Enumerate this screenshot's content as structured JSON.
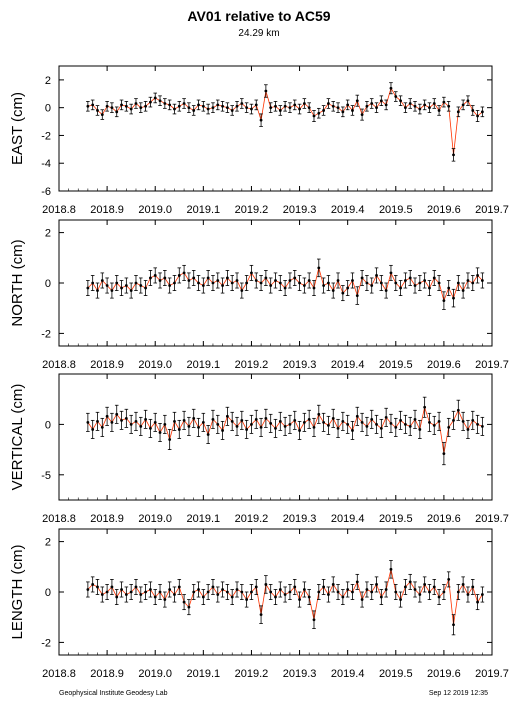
{
  "title": "AV01 relative to AC59",
  "subtitle": "24.29 km",
  "footer": {
    "left": "Geophysical Institute Geodesy Lab",
    "right": "Sep 12 2019 12:35"
  },
  "colors": {
    "points": "#000000",
    "error_bars": "#ff3300",
    "frame": "#000000"
  },
  "chart_data": [
    {
      "type": "scatter",
      "ylabel": "EAST (cm)",
      "xlim": [
        2018.8,
        2019.7
      ],
      "ylim": [
        -6,
        3
      ],
      "xticks": [
        "2018.8",
        "2018.9",
        "2019.0",
        "2019.1",
        "2019.2",
        "2019.3",
        "2019.4",
        "2019.5",
        "2019.6",
        "2019.7"
      ],
      "yticks": [
        "2",
        "0",
        "-2",
        "-4",
        "-6"
      ],
      "x": [
        2018.86,
        2018.87,
        2018.88,
        2018.89,
        2018.9,
        2018.91,
        2018.92,
        2018.93,
        2018.94,
        2018.95,
        2018.96,
        2018.97,
        2018.98,
        2018.99,
        2019.0,
        2019.01,
        2019.02,
        2019.03,
        2019.04,
        2019.05,
        2019.06,
        2019.07,
        2019.08,
        2019.09,
        2019.1,
        2019.11,
        2019.12,
        2019.13,
        2019.14,
        2019.15,
        2019.16,
        2019.17,
        2019.18,
        2019.19,
        2019.2,
        2019.21,
        2019.22,
        2019.23,
        2019.24,
        2019.25,
        2019.26,
        2019.27,
        2019.28,
        2019.29,
        2019.3,
        2019.31,
        2019.32,
        2019.33,
        2019.34,
        2019.35,
        2019.36,
        2019.37,
        2019.38,
        2019.39,
        2019.4,
        2019.41,
        2019.42,
        2019.43,
        2019.44,
        2019.45,
        2019.46,
        2019.47,
        2019.48,
        2019.49,
        2019.5,
        2019.51,
        2019.52,
        2019.53,
        2019.54,
        2019.55,
        2019.56,
        2019.57,
        2019.58,
        2019.59,
        2019.6,
        2019.61,
        2019.62,
        2019.63,
        2019.64,
        2019.65,
        2019.66,
        2019.67,
        2019.68
      ],
      "y": [
        0.1,
        0.2,
        -0.2,
        -0.5,
        0.1,
        0.0,
        -0.3,
        0.2,
        0.1,
        -0.1,
        0.3,
        0.0,
        0.1,
        0.4,
        0.7,
        0.5,
        0.3,
        0.2,
        -0.1,
        0.1,
        0.3,
        0.0,
        -0.2,
        0.2,
        0.1,
        -0.1,
        0.0,
        0.2,
        0.1,
        0.0,
        -0.2,
        0.1,
        0.3,
        0.0,
        -0.1,
        0.2,
        -0.9,
        1.2,
        0.0,
        0.1,
        -0.2,
        0.1,
        0.0,
        0.2,
        -0.1,
        0.3,
        0.0,
        -0.6,
        -0.4,
        -0.2,
        0.3,
        0.1,
        0.0,
        -0.3,
        0.2,
        -0.2,
        0.5,
        -0.5,
        0.1,
        0.3,
        0.0,
        0.5,
        0.2,
        1.4,
        0.8,
        0.5,
        0.0,
        0.3,
        0.1,
        -0.1,
        0.2,
        0.0,
        0.3,
        -0.2,
        0.4,
        0.1,
        -3.4,
        -0.3,
        0.2,
        0.5,
        -0.2,
        -0.6,
        -0.3
      ],
      "err": [
        0.35,
        0.35,
        0.35,
        0.35,
        0.35,
        0.35,
        0.35,
        0.35,
        0.35,
        0.35,
        0.35,
        0.35,
        0.35,
        0.35,
        0.35,
        0.35,
        0.35,
        0.35,
        0.35,
        0.35,
        0.35,
        0.35,
        0.35,
        0.35,
        0.35,
        0.35,
        0.35,
        0.35,
        0.35,
        0.35,
        0.35,
        0.35,
        0.35,
        0.35,
        0.35,
        0.35,
        0.45,
        0.45,
        0.35,
        0.35,
        0.35,
        0.35,
        0.35,
        0.35,
        0.35,
        0.35,
        0.35,
        0.4,
        0.35,
        0.35,
        0.35,
        0.35,
        0.35,
        0.35,
        0.35,
        0.35,
        0.4,
        0.4,
        0.35,
        0.35,
        0.35,
        0.35,
        0.35,
        0.4,
        0.35,
        0.35,
        0.35,
        0.35,
        0.35,
        0.35,
        0.35,
        0.35,
        0.35,
        0.35,
        0.35,
        0.35,
        0.45,
        0.35,
        0.35,
        0.35,
        0.35,
        0.4,
        0.35
      ]
    },
    {
      "type": "scatter",
      "ylabel": "NORTH (cm)",
      "xlim": [
        2018.8,
        2019.7
      ],
      "ylim": [
        -2.5,
        2.5
      ],
      "xticks": [
        "2018.8",
        "2018.9",
        "2019.0",
        "2019.1",
        "2019.2",
        "2019.3",
        "2019.4",
        "2019.5",
        "2019.6",
        "2019.7"
      ],
      "yticks": [
        "2",
        "0",
        "-2"
      ],
      "x": [
        2018.86,
        2018.87,
        2018.88,
        2018.89,
        2018.9,
        2018.91,
        2018.92,
        2018.93,
        2018.94,
        2018.95,
        2018.96,
        2018.97,
        2018.98,
        2018.99,
        2019.0,
        2019.01,
        2019.02,
        2019.03,
        2019.04,
        2019.05,
        2019.06,
        2019.07,
        2019.08,
        2019.09,
        2019.1,
        2019.11,
        2019.12,
        2019.13,
        2019.14,
        2019.15,
        2019.16,
        2019.17,
        2019.18,
        2019.19,
        2019.2,
        2019.21,
        2019.22,
        2019.23,
        2019.24,
        2019.25,
        2019.26,
        2019.27,
        2019.28,
        2019.29,
        2019.3,
        2019.31,
        2019.32,
        2019.33,
        2019.34,
        2019.35,
        2019.36,
        2019.37,
        2019.38,
        2019.39,
        2019.4,
        2019.41,
        2019.42,
        2019.43,
        2019.44,
        2019.45,
        2019.46,
        2019.47,
        2019.48,
        2019.49,
        2019.5,
        2019.51,
        2019.52,
        2019.53,
        2019.54,
        2019.55,
        2019.56,
        2019.57,
        2019.58,
        2019.59,
        2019.6,
        2019.61,
        2019.62,
        2019.63,
        2019.64,
        2019.65,
        2019.66,
        2019.67,
        2019.68
      ],
      "y": [
        -0.2,
        0.0,
        -0.3,
        0.1,
        -0.1,
        -0.3,
        0.0,
        -0.2,
        -0.1,
        -0.3,
        0.0,
        -0.1,
        -0.2,
        0.2,
        0.3,
        0.1,
        0.2,
        -0.1,
        0.0,
        0.3,
        0.4,
        0.1,
        0.2,
        0.0,
        -0.1,
        0.2,
        0.0,
        0.1,
        -0.1,
        0.2,
        0.0,
        0.1,
        -0.3,
        0.0,
        0.4,
        0.1,
        0.0,
        0.2,
        -0.1,
        0.1,
        0.0,
        -0.2,
        0.1,
        0.2,
        0.0,
        -0.1,
        0.1,
        -0.2,
        0.6,
        -0.1,
        0.0,
        -0.3,
        0.1,
        -0.4,
        -0.2,
        0.1,
        -0.5,
        0.2,
        0.0,
        -0.1,
        0.3,
        0.0,
        -0.3,
        0.4,
        0.0,
        -0.2,
        0.1,
        0.2,
        -0.1,
        0.0,
        0.1,
        -0.2,
        0.2,
        0.0,
        -0.7,
        -0.2,
        -0.6,
        0.0,
        -0.3,
        0.1,
        0.0,
        0.3,
        0.1
      ],
      "err": [
        0.3,
        0.3,
        0.3,
        0.3,
        0.3,
        0.3,
        0.3,
        0.3,
        0.3,
        0.3,
        0.3,
        0.3,
        0.3,
        0.3,
        0.3,
        0.3,
        0.3,
        0.3,
        0.3,
        0.3,
        0.3,
        0.3,
        0.3,
        0.3,
        0.3,
        0.3,
        0.3,
        0.3,
        0.3,
        0.3,
        0.3,
        0.3,
        0.3,
        0.3,
        0.3,
        0.3,
        0.3,
        0.3,
        0.3,
        0.3,
        0.3,
        0.3,
        0.3,
        0.3,
        0.3,
        0.3,
        0.3,
        0.3,
        0.35,
        0.3,
        0.3,
        0.3,
        0.3,
        0.3,
        0.3,
        0.3,
        0.35,
        0.3,
        0.3,
        0.3,
        0.3,
        0.3,
        0.3,
        0.3,
        0.3,
        0.3,
        0.3,
        0.3,
        0.3,
        0.3,
        0.3,
        0.3,
        0.3,
        0.3,
        0.35,
        0.3,
        0.35,
        0.3,
        0.3,
        0.3,
        0.3,
        0.3,
        0.3
      ]
    },
    {
      "type": "scatter",
      "ylabel": "VERTICAL (cm)",
      "xlim": [
        2018.8,
        2019.7
      ],
      "ylim": [
        -7.5,
        5
      ],
      "xticks": [
        "2018.8",
        "2018.9",
        "2019.0",
        "2019.1",
        "2019.2",
        "2019.3",
        "2019.4",
        "2019.5",
        "2019.6",
        "2019.7"
      ],
      "yticks": [
        "0",
        "-5"
      ],
      "x": [
        2018.86,
        2018.87,
        2018.88,
        2018.89,
        2018.9,
        2018.91,
        2018.92,
        2018.93,
        2018.94,
        2018.95,
        2018.96,
        2018.97,
        2018.98,
        2018.99,
        2019.0,
        2019.01,
        2019.02,
        2019.03,
        2019.04,
        2019.05,
        2019.06,
        2019.07,
        2019.08,
        2019.09,
        2019.1,
        2019.11,
        2019.12,
        2019.13,
        2019.14,
        2019.15,
        2019.16,
        2019.17,
        2019.18,
        2019.19,
        2019.2,
        2019.21,
        2019.22,
        2019.23,
        2019.24,
        2019.25,
        2019.26,
        2019.27,
        2019.28,
        2019.29,
        2019.3,
        2019.31,
        2019.32,
        2019.33,
        2019.34,
        2019.35,
        2019.36,
        2019.37,
        2019.38,
        2019.39,
        2019.4,
        2019.41,
        2019.42,
        2019.43,
        2019.44,
        2019.45,
        2019.46,
        2019.47,
        2019.48,
        2019.49,
        2019.5,
        2019.51,
        2019.52,
        2019.53,
        2019.54,
        2019.55,
        2019.56,
        2019.57,
        2019.58,
        2019.59,
        2019.6,
        2019.61,
        2019.62,
        2019.63,
        2019.64,
        2019.65,
        2019.66,
        2019.67,
        2019.68
      ],
      "y": [
        0.2,
        -0.5,
        0.3,
        -0.3,
        0.8,
        0.2,
        1.0,
        0.4,
        0.6,
        0.0,
        0.3,
        -0.2,
        0.5,
        -0.4,
        0.2,
        -0.8,
        0.0,
        -1.5,
        0.3,
        -0.5,
        0.4,
        -0.2,
        0.6,
        -0.3,
        0.2,
        -1.0,
        0.5,
        0.0,
        -0.6,
        0.8,
        0.3,
        -0.2,
        0.4,
        -0.5,
        0.0,
        0.5,
        -0.3,
        0.6,
        0.1,
        -0.4,
        0.3,
        -0.2,
        0.0,
        0.4,
        -0.6,
        0.2,
        0.5,
        -0.3,
        1.0,
        0.2,
        -0.1,
        0.6,
        -0.4,
        0.3,
        0.0,
        -0.6,
        0.8,
        0.2,
        -0.2,
        0.5,
        0.0,
        -0.4,
        0.7,
        0.1,
        -0.3,
        0.4,
        0.0,
        -0.2,
        0.5,
        -0.5,
        1.7,
        0.2,
        -0.1,
        0.3,
        -2.9,
        -0.3,
        0.4,
        1.4,
        0.3,
        -0.5,
        0.4,
        0.0,
        -0.2
      ],
      "err": [
        0.9,
        0.9,
        0.9,
        0.9,
        0.9,
        0.9,
        0.9,
        0.9,
        0.9,
        0.9,
        0.9,
        0.9,
        0.9,
        0.9,
        0.9,
        0.9,
        0.9,
        1.0,
        0.9,
        0.9,
        0.9,
        0.9,
        0.9,
        0.9,
        0.9,
        0.9,
        0.9,
        0.9,
        0.9,
        0.9,
        0.9,
        0.9,
        0.9,
        0.9,
        0.9,
        0.9,
        0.9,
        0.9,
        0.9,
        0.9,
        0.9,
        0.9,
        0.9,
        0.9,
        0.9,
        0.9,
        0.9,
        0.9,
        0.9,
        0.9,
        0.9,
        0.9,
        0.9,
        0.9,
        0.9,
        0.9,
        0.9,
        0.9,
        0.9,
        0.9,
        0.9,
        0.9,
        0.9,
        0.9,
        0.9,
        0.9,
        0.9,
        0.9,
        0.9,
        0.9,
        1.0,
        0.9,
        0.9,
        0.9,
        1.1,
        0.9,
        0.9,
        1.0,
        0.9,
        0.9,
        0.9,
        0.9,
        0.9
      ]
    },
    {
      "type": "scatter",
      "ylabel": "LENGTH (cm)",
      "xlim": [
        2018.8,
        2019.7
      ],
      "ylim": [
        -2.5,
        2.5
      ],
      "xticks": [
        "2018.8",
        "2018.9",
        "2019.0",
        "2019.1",
        "2019.2",
        "2019.3",
        "2019.4",
        "2019.5",
        "2019.6",
        "2019.7"
      ],
      "yticks": [
        "2",
        "0",
        "-2"
      ],
      "x": [
        2018.86,
        2018.87,
        2018.88,
        2018.89,
        2018.9,
        2018.91,
        2018.92,
        2018.93,
        2018.94,
        2018.95,
        2018.96,
        2018.97,
        2018.98,
        2018.99,
        2019.0,
        2019.01,
        2019.02,
        2019.03,
        2019.04,
        2019.05,
        2019.06,
        2019.07,
        2019.08,
        2019.09,
        2019.1,
        2019.11,
        2019.12,
        2019.13,
        2019.14,
        2019.15,
        2019.16,
        2019.17,
        2019.18,
        2019.19,
        2019.2,
        2019.21,
        2019.22,
        2019.23,
        2019.24,
        2019.25,
        2019.26,
        2019.27,
        2019.28,
        2019.29,
        2019.3,
        2019.31,
        2019.32,
        2019.33,
        2019.34,
        2019.35,
        2019.36,
        2019.37,
        2019.38,
        2019.39,
        2019.4,
        2019.41,
        2019.42,
        2019.43,
        2019.44,
        2019.45,
        2019.46,
        2019.47,
        2019.48,
        2019.49,
        2019.5,
        2019.51,
        2019.52,
        2019.53,
        2019.54,
        2019.55,
        2019.56,
        2019.57,
        2019.58,
        2019.59,
        2019.6,
        2019.61,
        2019.62,
        2019.63,
        2019.64,
        2019.65,
        2019.66,
        2019.67,
        2019.68
      ],
      "y": [
        0.1,
        0.3,
        0.2,
        -0.1,
        0.0,
        0.2,
        -0.2,
        0.1,
        -0.1,
        0.0,
        0.2,
        -0.1,
        0.0,
        0.1,
        -0.2,
        0.0,
        -0.3,
        0.1,
        -0.1,
        0.2,
        -0.4,
        -0.6,
        0.0,
        0.1,
        -0.2,
        0.0,
        0.2,
        -0.1,
        0.1,
        0.0,
        -0.2,
        0.1,
        0.0,
        -0.3,
        0.0,
        0.2,
        -0.9,
        0.3,
        0.0,
        -0.2,
        0.1,
        -0.1,
        0.0,
        0.2,
        -0.3,
        0.1,
        -0.2,
        -1.1,
        0.0,
        0.2,
        -0.1,
        0.3,
        0.0,
        -0.2,
        0.1,
        0.0,
        0.4,
        -0.3,
        0.1,
        0.0,
        0.3,
        -0.2,
        0.1,
        0.9,
        0.0,
        -0.3,
        0.2,
        0.4,
        0.1,
        -0.1,
        0.3,
        0.0,
        0.2,
        -0.2,
        0.0,
        0.5,
        -1.3,
        0.0,
        0.3,
        -0.1,
        0.2,
        -0.4,
        -0.1
      ],
      "err": [
        0.3,
        0.3,
        0.3,
        0.3,
        0.3,
        0.3,
        0.3,
        0.3,
        0.3,
        0.3,
        0.3,
        0.3,
        0.3,
        0.3,
        0.3,
        0.3,
        0.3,
        0.3,
        0.3,
        0.3,
        0.3,
        0.3,
        0.3,
        0.3,
        0.3,
        0.3,
        0.3,
        0.3,
        0.3,
        0.3,
        0.3,
        0.3,
        0.3,
        0.3,
        0.3,
        0.3,
        0.35,
        0.35,
        0.3,
        0.3,
        0.3,
        0.3,
        0.3,
        0.3,
        0.3,
        0.3,
        0.3,
        0.35,
        0.3,
        0.3,
        0.3,
        0.3,
        0.3,
        0.3,
        0.3,
        0.3,
        0.3,
        0.3,
        0.3,
        0.3,
        0.3,
        0.3,
        0.3,
        0.35,
        0.3,
        0.3,
        0.3,
        0.3,
        0.3,
        0.3,
        0.3,
        0.3,
        0.3,
        0.3,
        0.3,
        0.3,
        0.4,
        0.3,
        0.3,
        0.3,
        0.3,
        0.3,
        0.3
      ]
    }
  ]
}
